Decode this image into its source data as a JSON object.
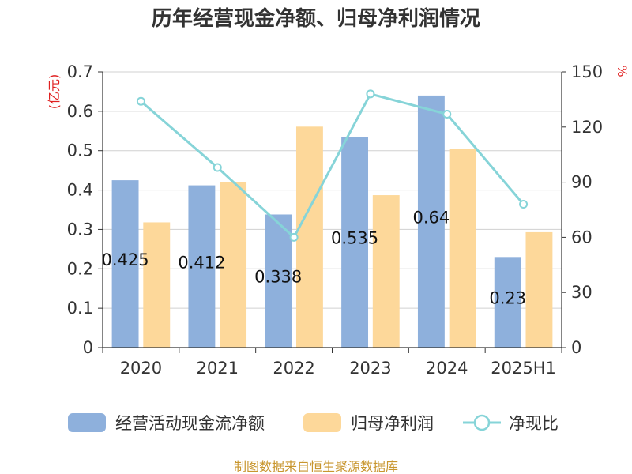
{
  "chart_data": {
    "type": "bar",
    "title": "历年经营现金净额、归母净利润情况",
    "categories": [
      "2020",
      "2021",
      "2022",
      "2023",
      "2024",
      "2025H1"
    ],
    "series": [
      {
        "name": "经营活动现金流净额",
        "type": "bar",
        "axis": "left",
        "color": "#8eb0dc",
        "values": [
          0.425,
          0.412,
          0.338,
          0.535,
          0.64,
          0.23
        ],
        "labels": [
          "0.425",
          "0.412",
          "0.338",
          "0.535",
          "0.64",
          "0.23"
        ]
      },
      {
        "name": "归母净利润",
        "type": "bar",
        "axis": "left",
        "color": "#fdd89a",
        "values": [
          0.318,
          0.42,
          0.561,
          0.387,
          0.504,
          0.293
        ]
      },
      {
        "name": "净现比",
        "type": "line",
        "axis": "right",
        "color": "#86d4d8",
        "values": [
          134,
          98,
          60,
          138,
          127,
          78
        ]
      }
    ],
    "y_left": {
      "unit": "(亿元)",
      "ylim": [
        0,
        0.7
      ],
      "ticks": [
        "0",
        "0.1",
        "0.2",
        "0.3",
        "0.4",
        "0.5",
        "0.6",
        "0.7"
      ]
    },
    "y_right": {
      "unit": "%",
      "ylim": [
        0,
        150
      ],
      "ticks": [
        "0",
        "30",
        "60",
        "90",
        "120",
        "150"
      ]
    },
    "grid": true,
    "legend_position": "bottom",
    "source": "制图数据来自恒生聚源数据库"
  }
}
